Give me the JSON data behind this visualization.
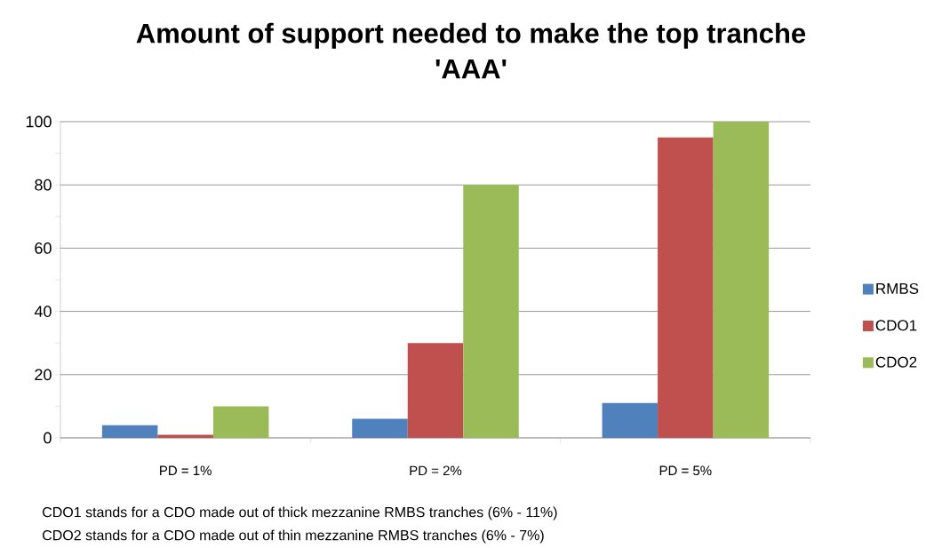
{
  "chart_data": {
    "type": "bar",
    "title": "Amount of support needed to make the top tranche 'AAA'",
    "categories": [
      "PD = 1%",
      "PD = 2%",
      "PD = 5%"
    ],
    "series": [
      {
        "name": "RMBS",
        "color": "#4f81bd",
        "values": [
          4,
          6,
          11
        ]
      },
      {
        "name": "CDO1",
        "color": "#c0504d",
        "values": [
          1,
          30,
          95
        ]
      },
      {
        "name": "CDO2",
        "color": "#9bbb59",
        "values": [
          10,
          80,
          100
        ]
      }
    ],
    "ylim": [
      0,
      100
    ],
    "yticks": [
      0,
      {
        "value": 10,
        "label": null
      },
      20,
      {
        "value": 30,
        "label": null
      },
      40,
      {
        "value": 50,
        "label": null
      },
      60,
      {
        "value": 70,
        "label": null
      },
      80,
      {
        "value": 90,
        "label": null
      },
      100
    ],
    "grid": "y",
    "legend": "right",
    "annotations": [
      "CDO1 stands for a CDO made out of thick mezzanine RMBS tranches (6% - 11%)",
      "CDO2 stands for a CDO made out of thin mezzanine RMBS tranches (6% - 7%)"
    ]
  }
}
